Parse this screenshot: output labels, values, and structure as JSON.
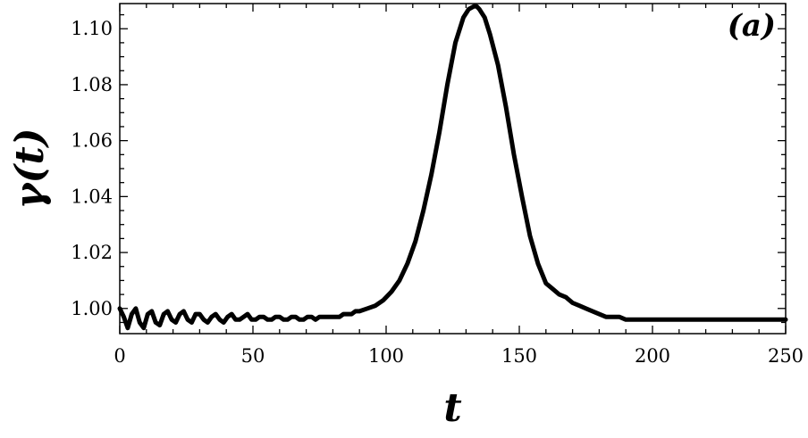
{
  "chart_data": {
    "type": "line",
    "title": "",
    "xlabel": "t",
    "ylabel": "γ(t)",
    "panel_label": "(a)",
    "xlim": [
      0,
      250
    ],
    "ylim": [
      0.991,
      1.109
    ],
    "grid": false,
    "xticks": [
      0,
      50,
      100,
      150,
      200,
      250
    ],
    "xtick_labels": [
      "0",
      "50",
      "100",
      "150",
      "200",
      "250"
    ],
    "yticks": [
      1.0,
      1.02,
      1.04,
      1.06,
      1.08,
      1.1
    ],
    "ytick_labels": [
      "1.00",
      "1.02",
      "1.04",
      "1.06",
      "1.08",
      "1.10"
    ],
    "line_color": "#000000",
    "series": [
      {
        "x": [
          0,
          1.5,
          3,
          4.5,
          6,
          7.5,
          9,
          10.5,
          12,
          13.5,
          15,
          16.5,
          18,
          19.5,
          21,
          22.5,
          24,
          25.5,
          27,
          28.5,
          30,
          31.5,
          33,
          34.5,
          36,
          37.5,
          39,
          40.5,
          42,
          43.5,
          45,
          46.5,
          48,
          49.5,
          51,
          52.5,
          54,
          55.5,
          57,
          58.5,
          60,
          61.5,
          63,
          64.5,
          66,
          67.5,
          69,
          70.5,
          72,
          73.5,
          75,
          76.5,
          78,
          79.5,
          81,
          82.5,
          84,
          85.5,
          87,
          88.5,
          90,
          93,
          96,
          99,
          102,
          105,
          108,
          111,
          114,
          117,
          120,
          123,
          126,
          129,
          131,
          133,
          134,
          135,
          137,
          139,
          142,
          145,
          148,
          151,
          154,
          157,
          160,
          162.5,
          165,
          167.5,
          170,
          172.5,
          175,
          177.5,
          180,
          182.5,
          185,
          187.5,
          190,
          192.5,
          195,
          197.5,
          200,
          202.5,
          205,
          207.5,
          210,
          212.5,
          215,
          217.5,
          220,
          222.5,
          225,
          227.5,
          230,
          232.5,
          235,
          237.5,
          240,
          242.5,
          245,
          247.5,
          250
        ],
        "y": [
          1.0,
          0.997,
          0.993,
          0.998,
          1.0,
          0.995,
          0.993,
          0.998,
          0.999,
          0.995,
          0.994,
          0.998,
          0.999,
          0.996,
          0.995,
          0.998,
          0.999,
          0.996,
          0.995,
          0.998,
          0.998,
          0.996,
          0.995,
          0.997,
          0.998,
          0.996,
          0.995,
          0.997,
          0.998,
          0.996,
          0.996,
          0.997,
          0.998,
          0.996,
          0.996,
          0.997,
          0.997,
          0.996,
          0.996,
          0.997,
          0.997,
          0.996,
          0.996,
          0.997,
          0.997,
          0.996,
          0.996,
          0.997,
          0.997,
          0.996,
          0.997,
          0.997,
          0.997,
          0.997,
          0.997,
          0.997,
          0.998,
          0.998,
          0.998,
          0.999,
          0.999,
          1.0,
          1.001,
          1.003,
          1.006,
          1.01,
          1.016,
          1.024,
          1.035,
          1.048,
          1.063,
          1.08,
          1.095,
          1.104,
          1.107,
          1.108,
          1.108,
          1.107,
          1.104,
          1.098,
          1.087,
          1.072,
          1.055,
          1.04,
          1.026,
          1.016,
          1.009,
          1.007,
          1.005,
          1.004,
          1.002,
          1.001,
          1.0,
          0.999,
          0.998,
          0.997,
          0.997,
          0.997,
          0.996,
          0.996,
          0.996,
          0.996,
          0.996,
          0.996,
          0.996,
          0.996,
          0.996,
          0.996,
          0.996,
          0.996,
          0.996,
          0.996,
          0.996,
          0.996,
          0.996,
          0.996,
          0.996,
          0.996,
          0.996,
          0.996,
          0.996,
          0.996,
          0.996
        ]
      }
    ]
  }
}
